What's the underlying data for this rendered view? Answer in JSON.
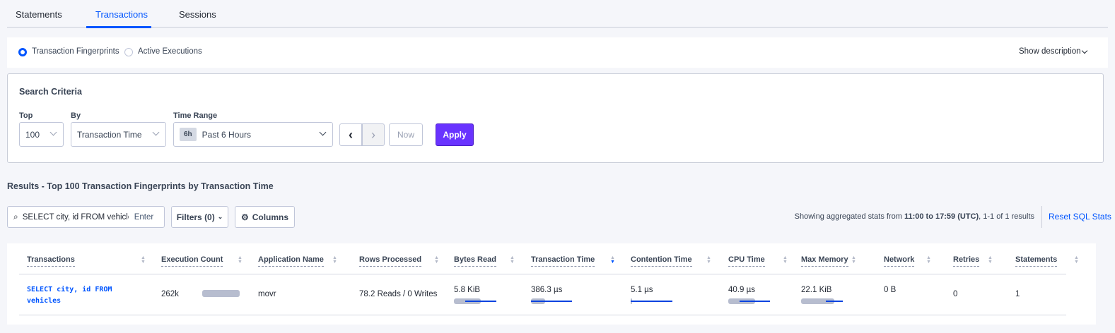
{
  "tabs": [
    {
      "label": "Statements"
    },
    {
      "label": "Transactions",
      "active": true
    },
    {
      "label": "Sessions"
    }
  ],
  "view": {
    "options": [
      {
        "label": "Transaction Fingerprints",
        "selected": true
      },
      {
        "label": "Active Executions",
        "selected": false
      }
    ],
    "show_description": "Show description"
  },
  "search": {
    "title": "Search Criteria",
    "top_label": "Top",
    "top_value": "100",
    "by_label": "By",
    "by_value": "Transaction Time",
    "time_label": "Time Range",
    "time_badge": "6h",
    "time_value": "Past 6 Hours",
    "now_label": "Now",
    "apply_label": "Apply"
  },
  "results": {
    "title": "Results - Top 100 Transaction Fingerprints by Transaction Time",
    "search_value": "SELECT city, id FROM vehicles W",
    "enter_label": "Enter",
    "filters_label": "Filters (0)",
    "columns_label": "Columns",
    "stats_prefix": "Showing aggregated stats from ",
    "stats_range": "11:00 to 17:59",
    "stats_utc": "(UTC)",
    "stats_suffix": ", 1-1 of 1 results",
    "reset_label": "Reset SQL Stats"
  },
  "table": {
    "headers": [
      "Transactions",
      "Execution Count",
      "Application Name",
      "Rows Processed",
      "Bytes Read",
      "Transaction Time",
      "Contention Time",
      "CPU Time",
      "Max Memory",
      "Network",
      "Retries",
      "Statements"
    ],
    "sorted_column": "Transaction Time",
    "rows": [
      {
        "transaction": "SELECT city, id FROM vehicles",
        "execution_count": "262k",
        "application": "movr",
        "rows_processed": "78.2 Reads / 0 Writes",
        "bytes_read": "5.8 KiB",
        "transaction_time": "386.3 µs",
        "contention_time": "5.1 µs",
        "cpu_time": "40.9 µs",
        "max_memory": "22.1 KiB",
        "network": "0 B",
        "retries": "0",
        "statements": "1"
      }
    ]
  },
  "colors": {
    "accent": "#0055ff",
    "apply": "#6933ff",
    "background": "#f5f6fa"
  }
}
